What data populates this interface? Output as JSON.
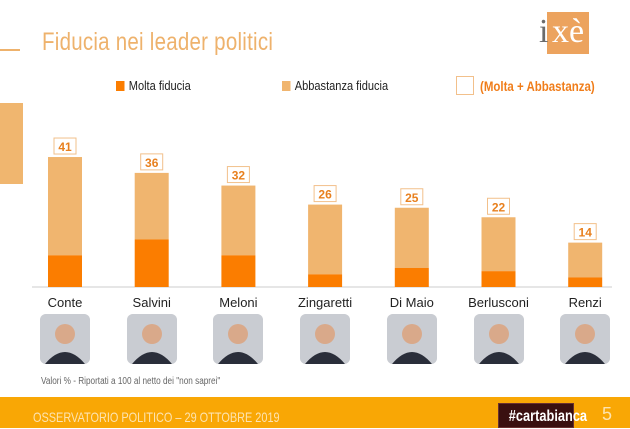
{
  "header": {
    "title": "Fiducia nei leader politici",
    "logo": "ixè"
  },
  "legend": {
    "molta": "Molta fiducia",
    "abbastanza": "Abbastanza fiducia",
    "totale": "(Molta + Abbastanza)"
  },
  "colors": {
    "molta": "#fb7d00",
    "abbastanza": "#f0b56f",
    "label": "#e8801e"
  },
  "chart_data": {
    "type": "bar",
    "stacked": true,
    "title": "Fiducia nei leader politici",
    "categories": [
      "Conte",
      "Salvini",
      "Meloni",
      "Zingaretti",
      "Di Maio",
      "Berlusconi",
      "Renzi"
    ],
    "series": [
      {
        "name": "Molta fiducia",
        "values": [
          10,
          15,
          10,
          4,
          6,
          5,
          3
        ]
      },
      {
        "name": "Abbastanza fiducia",
        "values": [
          31,
          21,
          22,
          22,
          19,
          17,
          11
        ]
      }
    ],
    "totals": [
      41,
      36,
      32,
      26,
      25,
      22,
      14
    ],
    "ylim": [
      0,
      45
    ],
    "grid": false,
    "legend_position": "top"
  },
  "note": "Valori % - Riportati a 100 al netto dei \"non saprei\"",
  "footer": {
    "text": "OSSERVATORIO POLITICO – 29 OTTOBRE 2019",
    "hashtag": "#cartabianca",
    "page": "5"
  }
}
